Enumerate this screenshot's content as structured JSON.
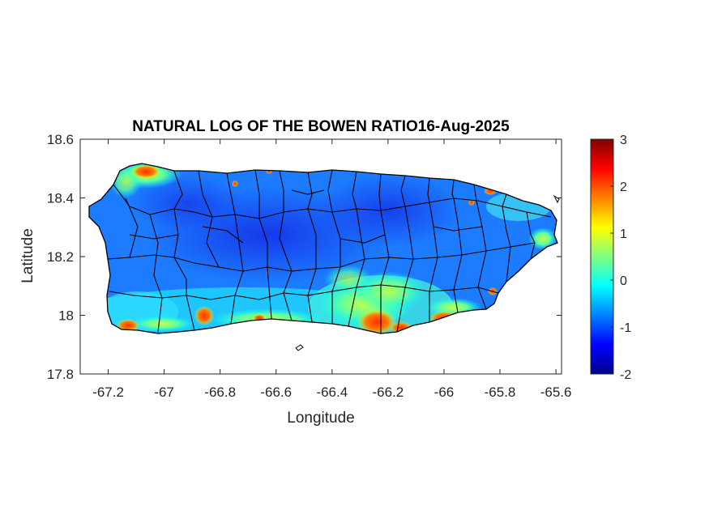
{
  "map": {
    "title": "NATURAL LOG OF THE BOWEN RATIO16-Aug-2025",
    "xlabel": "Longitude",
    "ylabel": "Latitude",
    "xlim": [
      -67.3,
      -65.58
    ],
    "ylim": [
      17.8,
      18.6
    ],
    "x_ticks": [
      "-67.2",
      "-67",
      "-66.8",
      "-66.6",
      "-66.4",
      "-66.2",
      "-66",
      "-65.8",
      "-65.6"
    ],
    "y_ticks": [
      "18.6",
      "18.4",
      "18.2",
      "18",
      "17.8"
    ],
    "variable": "ln(Bowen ratio)",
    "date": "16-Aug-2025",
    "region": "Puerto Rico",
    "colormap": "jet"
  },
  "colorbar": {
    "range": [
      -2,
      3
    ],
    "ticks": [
      "3",
      "2",
      "1",
      "0",
      "-1",
      "-2"
    ],
    "colors": [
      "#00008f",
      "#0000ff",
      "#0080ff",
      "#00ffff",
      "#80ff80",
      "#ffff00",
      "#ff8000",
      "#ff0000",
      "#800000"
    ]
  }
}
